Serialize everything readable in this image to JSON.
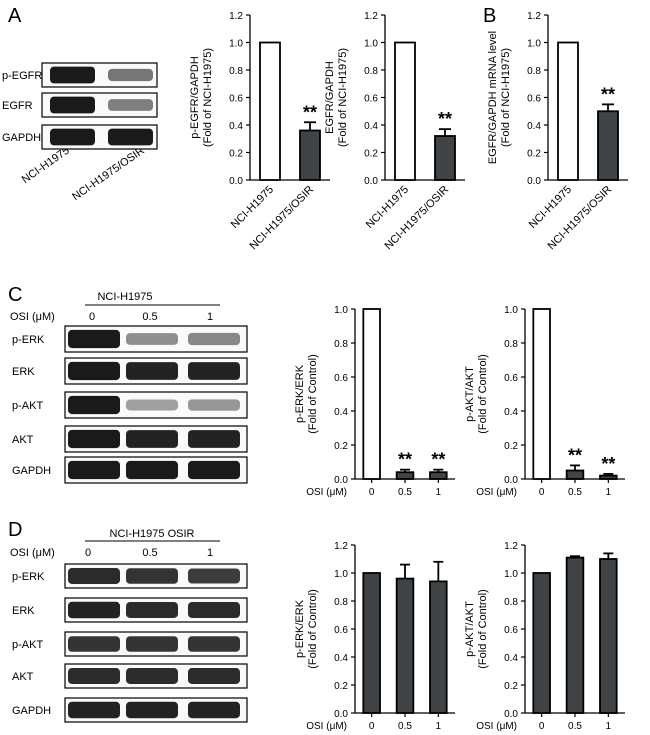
{
  "colors": {
    "open": "#ffffff",
    "dark": "#404446",
    "band": "#1a1a1a",
    "axis": "#000000"
  },
  "panels": [
    {
      "letter": "A"
    },
    {
      "letter": "B"
    },
    {
      "letter": "C",
      "cell_line": "NCI-H1975",
      "osi_label": "OSI (μM)",
      "doses": [
        "0",
        "0.5",
        "1"
      ]
    },
    {
      "letter": "D",
      "cell_line": "NCI-H1975 OSIR",
      "osi_label": "OSI (μM)",
      "doses": [
        "0",
        "0.5",
        "1"
      ]
    }
  ],
  "blot_labels": {
    "A": [
      "p-EGFR",
      "EGFR",
      "GAPDH"
    ],
    "C": [
      "p-ERK",
      "ERK",
      "p-AKT",
      "AKT",
      "GAPDH"
    ],
    "D": [
      "p-ERK",
      "ERK",
      "p-AKT",
      "AKT",
      "GAPDH"
    ]
  },
  "blot_lanes": {
    "A": [
      "NCI-H1975",
      "NCI-H1975/OSIR"
    ]
  },
  "band_intensity": {
    "A": [
      [
        1,
        0.45
      ],
      [
        1,
        0.4
      ],
      [
        1,
        1
      ]
    ],
    "C": [
      [
        1,
        0.3,
        0.35
      ],
      [
        1,
        0.95,
        0.95
      ],
      [
        1,
        0.2,
        0.25
      ],
      [
        1,
        0.95,
        0.95
      ],
      [
        1,
        1,
        1
      ]
    ],
    "D": [
      [
        0.9,
        0.85,
        0.8
      ],
      [
        0.95,
        0.9,
        0.9
      ],
      [
        0.85,
        0.85,
        0.85
      ],
      [
        0.9,
        0.9,
        0.9
      ],
      [
        0.95,
        0.95,
        0.95
      ]
    ]
  },
  "chart_data": [
    {
      "type": "bar",
      "panel": "A",
      "ylabel": [
        "p-EGFR/GAPDH",
        "(Fold of NCI-H1975)"
      ],
      "categories": [
        "NCI-H1975",
        "NCI-H1975/OSIR"
      ],
      "values": [
        1.0,
        0.36
      ],
      "errors": [
        0,
        0.06
      ],
      "significance": [
        "",
        "**"
      ],
      "ylim": [
        0,
        1.2
      ],
      "yticks": [
        "0.0",
        "0.2",
        "0.4",
        "0.6",
        "0.8",
        "1.0",
        "1.2"
      ]
    },
    {
      "type": "bar",
      "panel": "A",
      "ylabel": [
        "EGFR/GAPDH",
        "(Fold of NCI-H1975)"
      ],
      "categories": [
        "NCI-H1975",
        "NCI-H1975/OSIR"
      ],
      "values": [
        1.0,
        0.32
      ],
      "errors": [
        0,
        0.05
      ],
      "significance": [
        "",
        "**"
      ],
      "ylim": [
        0,
        1.2
      ],
      "yticks": [
        "0.0",
        "0.2",
        "0.4",
        "0.6",
        "0.8",
        "1.0",
        "1.2"
      ]
    },
    {
      "type": "bar",
      "panel": "B",
      "ylabel": [
        "EGFR/GAPDH mRNA level",
        "(Fold of NCI-H1975)"
      ],
      "categories": [
        "NCI-H1975",
        "NCI-H1975/OSIR"
      ],
      "values": [
        1.0,
        0.5
      ],
      "errors": [
        0,
        0.05
      ],
      "significance": [
        "",
        "**"
      ],
      "ylim": [
        0,
        1.2
      ],
      "yticks": [
        "0.0",
        "0.2",
        "0.4",
        "0.6",
        "0.8",
        "1.0",
        "1.2"
      ]
    },
    {
      "type": "bar",
      "panel": "C",
      "ylabel": [
        "p-ERK/ERK",
        "(Fold of Control)"
      ],
      "xlabel": "OSI (μM)",
      "categories": [
        "0",
        "0.5",
        "1"
      ],
      "values": [
        1.0,
        0.04,
        0.04
      ],
      "errors": [
        0,
        0.015,
        0.015
      ],
      "significance": [
        "",
        "**",
        "**"
      ],
      "ylim": [
        0,
        1.0
      ],
      "yticks": [
        "0.0",
        "0.2",
        "0.4",
        "0.6",
        "0.8",
        "1.0"
      ]
    },
    {
      "type": "bar",
      "panel": "C",
      "ylabel": [
        "p-AKT/AKT",
        "(Fold of Control)"
      ],
      "xlabel": "OSI (μM)",
      "categories": [
        "0",
        "0.5",
        "1"
      ],
      "values": [
        1.0,
        0.05,
        0.02
      ],
      "errors": [
        0,
        0.03,
        0.01
      ],
      "significance": [
        "",
        "**",
        "**"
      ],
      "ylim": [
        0,
        1.0
      ],
      "yticks": [
        "0.0",
        "0.2",
        "0.4",
        "0.6",
        "0.8",
        "1.0"
      ]
    },
    {
      "type": "bar",
      "panel": "D",
      "ylabel": [
        "p-ERK/ERK",
        "(Fold of Control)"
      ],
      "xlabel": "OSI (μM)",
      "categories": [
        "0",
        "0.5",
        "1"
      ],
      "values": [
        1.0,
        0.96,
        0.94
      ],
      "errors": [
        0,
        0.1,
        0.14
      ],
      "significance": [
        "",
        "",
        ""
      ],
      "ylim": [
        0,
        1.2
      ],
      "yticks": [
        "0.0",
        "0.2",
        "0.4",
        "0.6",
        "0.8",
        "1.0",
        "1.2"
      ]
    },
    {
      "type": "bar",
      "panel": "D",
      "ylabel": [
        "p-AKT/AKT",
        "(Fold of Control)"
      ],
      "xlabel": "OSI (μM)",
      "categories": [
        "0",
        "0.5",
        "1"
      ],
      "values": [
        1.0,
        1.11,
        1.1
      ],
      "errors": [
        0,
        0.01,
        0.04
      ],
      "significance": [
        "",
        "",
        ""
      ],
      "ylim": [
        0,
        1.2
      ],
      "yticks": [
        "0.0",
        "0.2",
        "0.4",
        "0.6",
        "0.8",
        "1.0",
        "1.2"
      ]
    }
  ]
}
